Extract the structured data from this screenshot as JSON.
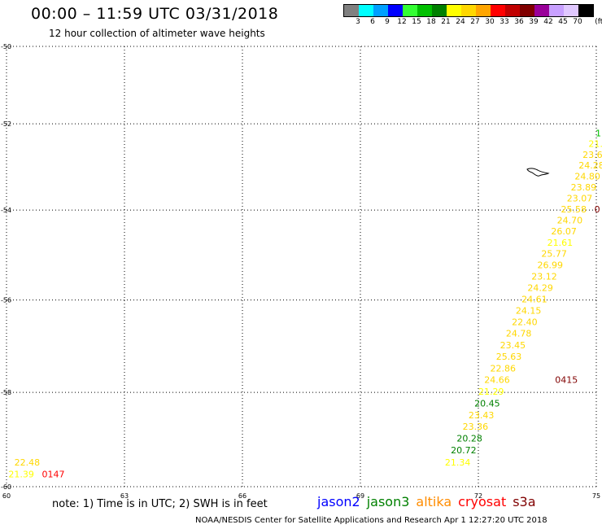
{
  "header": {
    "title": "00:00 – 11:59 UTC 03/31/2018",
    "subtitle": "12 hour collection of altimeter wave heights"
  },
  "colorbar": {
    "unit": "(ft)",
    "colors": [
      "#808080",
      "#00ffff",
      "#00a0ff",
      "#0000ff",
      "#33ff33",
      "#00c000",
      "#008000",
      "#ffff00",
      "#ffd700",
      "#ffa500",
      "#ff0000",
      "#c00000",
      "#800000",
      "#990099",
      "#c8a0ff",
      "#e0c8ff",
      "#000000"
    ],
    "ticks": [
      "3",
      "6",
      "9",
      "12",
      "15",
      "18",
      "21",
      "24",
      "27",
      "30",
      "33",
      "36",
      "39",
      "42",
      "45",
      "70"
    ]
  },
  "map": {
    "lon_labels": [
      "60",
      "63",
      "66",
      "69",
      "72",
      "75"
    ],
    "lat_labels": [
      "-50",
      "-52",
      "-54",
      "-56",
      "-58",
      "-60"
    ],
    "obs": [
      {
        "t": "22.48",
        "lon": 60.2,
        "lat": -59.55,
        "c": "#ffd700"
      },
      {
        "t": "21.39",
        "lon": 60.05,
        "lat": -59.8,
        "c": "#ffff00"
      },
      {
        "t": "0147",
        "lon": 60.9,
        "lat": -59.8,
        "c": "#ff0000"
      },
      {
        "t": "21.34",
        "lon": 71.15,
        "lat": -59.55,
        "c": "#ffff00"
      },
      {
        "t": "20.72",
        "lon": 71.3,
        "lat": -59.3,
        "c": "#008000"
      },
      {
        "t": "20.28",
        "lon": 71.45,
        "lat": -59.05,
        "c": "#008000"
      },
      {
        "t": "23.36",
        "lon": 71.6,
        "lat": -58.8,
        "c": "#ffd700"
      },
      {
        "t": "23.43",
        "lon": 71.75,
        "lat": -58.55,
        "c": "#ffd700"
      },
      {
        "t": "20.45",
        "lon": 71.9,
        "lat": -58.3,
        "c": "#008000"
      },
      {
        "t": "21.29",
        "lon": 72.0,
        "lat": -58.05,
        "c": "#ffff00"
      },
      {
        "t": "24.66",
        "lon": 72.15,
        "lat": -57.8,
        "c": "#ffd700"
      },
      {
        "t": "22.86",
        "lon": 72.3,
        "lat": -57.55,
        "c": "#ffd700"
      },
      {
        "t": "25.63",
        "lon": 72.45,
        "lat": -57.3,
        "c": "#ffd700"
      },
      {
        "t": "23.45",
        "lon": 72.55,
        "lat": -57.05,
        "c": "#ffd700"
      },
      {
        "t": "24.78",
        "lon": 72.7,
        "lat": -56.8,
        "c": "#ffd700"
      },
      {
        "t": "22.40",
        "lon": 72.85,
        "lat": -56.55,
        "c": "#ffd700"
      },
      {
        "t": "24.15",
        "lon": 72.95,
        "lat": -56.3,
        "c": "#ffd700"
      },
      {
        "t": "24.61",
        "lon": 73.1,
        "lat": -56.05,
        "c": "#ffd700"
      },
      {
        "t": "24.29",
        "lon": 73.25,
        "lat": -55.8,
        "c": "#ffd700"
      },
      {
        "t": "23.12",
        "lon": 73.35,
        "lat": -55.55,
        "c": "#ffd700"
      },
      {
        "t": "26.99",
        "lon": 73.5,
        "lat": -55.3,
        "c": "#ffd700"
      },
      {
        "t": "25.77",
        "lon": 73.6,
        "lat": -55.05,
        "c": "#ffd700"
      },
      {
        "t": "21.61",
        "lon": 73.75,
        "lat": -54.8,
        "c": "#ffff00"
      },
      {
        "t": "26.07",
        "lon": 73.85,
        "lat": -54.55,
        "c": "#ffd700"
      },
      {
        "t": "24.70",
        "lon": 74.0,
        "lat": -54.3,
        "c": "#ffd700"
      },
      {
        "t": "25.58",
        "lon": 74.1,
        "lat": -54.05,
        "c": "#ffd700"
      },
      {
        "t": "23.07",
        "lon": 74.25,
        "lat": -53.8,
        "c": "#ffd700"
      },
      {
        "t": "23.89",
        "lon": 74.35,
        "lat": -53.55,
        "c": "#ffd700"
      },
      {
        "t": "24.80",
        "lon": 74.45,
        "lat": -53.3,
        "c": "#ffd700"
      },
      {
        "t": "24.28",
        "lon": 74.55,
        "lat": -53.05,
        "c": "#ffd700"
      },
      {
        "t": "23.6",
        "lon": 74.65,
        "lat": -52.8,
        "c": "#ffd700"
      },
      {
        "t": "21.",
        "lon": 74.8,
        "lat": -52.55,
        "c": "#ffff00"
      },
      {
        "t": "1",
        "lon": 74.98,
        "lat": -52.3,
        "c": "#00c000"
      },
      {
        "t": "0415",
        "lon": 73.95,
        "lat": -57.8,
        "c": "#800000"
      },
      {
        "t": "0",
        "lon": 74.95,
        "lat": -54.05,
        "c": "#800000"
      }
    ]
  },
  "footer": {
    "note": "note: 1) Time is in UTC; 2) SWH is in feet",
    "credit": "NOAA/NESDIS Center for Satellite Applications and Research     Apr  1 12:27:20 UTC 2018",
    "missions": [
      {
        "name": "jason2",
        "color": "#0000ff"
      },
      {
        "name": "jason3",
        "color": "#008000"
      },
      {
        "name": "altika",
        "color": "#ff8c00"
      },
      {
        "name": "cryosat",
        "color": "#ff0000"
      },
      {
        "name": "s3a",
        "color": "#800000"
      }
    ]
  }
}
